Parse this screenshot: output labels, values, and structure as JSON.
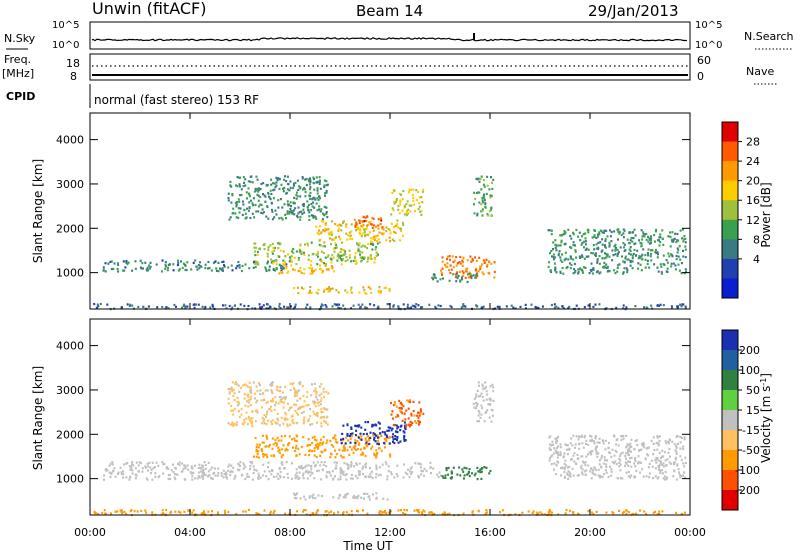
{
  "header": {
    "station": "Unwin (fitACF)",
    "beam": "Beam 14",
    "date": "29/Jan/2013"
  },
  "top_panels": {
    "nsky_label": "N.Sky",
    "nsky_ticks": [
      "10^5",
      "10^0"
    ],
    "nsearch_label": "N.Search",
    "freq_label": "Freq.",
    "freq_unit": "[MHz]",
    "freq_ticks": [
      "18",
      "8"
    ],
    "nave_label": "Nave",
    "nave_ticks": [
      "60",
      "0"
    ],
    "cpid_label": "CPID",
    "cpid_text": "normal (fast stereo) 153 RF"
  },
  "power_scale": {
    "title": "Power [dB]",
    "ticks": [
      "28",
      "24",
      "20",
      "16",
      "12",
      "8",
      "4"
    ],
    "colors": [
      "#e00000",
      "#ff5a00",
      "#ff9a00",
      "#ffcc00",
      "#9ec03a",
      "#3aa050",
      "#3a7a82",
      "#2040b0",
      "#0a1ed0"
    ]
  },
  "velocity_scale": {
    "title": "Velocity [m s",
    "title_sup": "-1",
    "title_end": "]",
    "ticks": [
      "200",
      "100",
      "50",
      "15",
      "-15",
      "-50",
      "-100",
      "-200"
    ],
    "colors": [
      "#1a30b0",
      "#2060a0",
      "#308040",
      "#60d040",
      "#c0c0c0",
      "#ffc060",
      "#ff9a00",
      "#ff5000",
      "#e00000"
    ]
  },
  "chart_data": {
    "type": "heatmap",
    "xlabel": "Time UT",
    "ylabel_top": "Slant Range [km]",
    "ylabel_bottom": "Slant Range [km]",
    "x_ticks": [
      "00:00",
      "04:00",
      "08:00",
      "12:00",
      "16:00",
      "20:00",
      "00:00"
    ],
    "x_range_hours": [
      0,
      24
    ],
    "y_ticks": [
      "1000",
      "2000",
      "3000",
      "4000"
    ],
    "y_range_km": [
      180,
      4600
    ],
    "power_blobs": [
      {
        "t0": 0.5,
        "t1": 8.0,
        "r0": 1050,
        "r1": 1300,
        "value": 9
      },
      {
        "t0": 6.5,
        "t1": 11.5,
        "r0": 1200,
        "r1": 1700,
        "value": 16
      },
      {
        "t0": 7.5,
        "t1": 10.0,
        "r0": 1000,
        "r1": 1200,
        "value": 22
      },
      {
        "t0": 5.5,
        "t1": 9.5,
        "r0": 2200,
        "r1": 3200,
        "value": 10
      },
      {
        "t0": 9.0,
        "t1": 12.5,
        "r0": 1700,
        "r1": 2200,
        "value": 20
      },
      {
        "t0": 10.5,
        "t1": 11.8,
        "r0": 2000,
        "r1": 2300,
        "value": 27
      },
      {
        "t0": 12.0,
        "t1": 13.3,
        "r0": 2300,
        "r1": 2900,
        "value": 18
      },
      {
        "t0": 14.0,
        "t1": 16.2,
        "r0": 900,
        "r1": 1400,
        "value": 26
      },
      {
        "t0": 13.6,
        "t1": 15.5,
        "r0": 800,
        "r1": 1000,
        "value": 10
      },
      {
        "t0": 8.0,
        "t1": 12.0,
        "r0": 550,
        "r1": 700,
        "value": 20
      },
      {
        "t0": 15.3,
        "t1": 16.1,
        "r0": 2300,
        "r1": 3200,
        "value": 12
      },
      {
        "t0": 18.3,
        "t1": 23.8,
        "r0": 1000,
        "r1": 2000,
        "value": 10
      },
      {
        "t0": 0.1,
        "t1": 23.9,
        "r0": 200,
        "r1": 320,
        "value": 6
      }
    ],
    "velocity_blobs": [
      {
        "t0": 0.5,
        "t1": 14.0,
        "r0": 1000,
        "r1": 1400,
        "value": 0
      },
      {
        "t0": 6.5,
        "t1": 12.0,
        "r0": 1500,
        "r1": 2000,
        "value": -40
      },
      {
        "t0": 10.0,
        "t1": 12.6,
        "r0": 1800,
        "r1": 2300,
        "value": 180
      },
      {
        "t0": 12.0,
        "t1": 13.3,
        "r0": 2200,
        "r1": 2800,
        "value": -80
      },
      {
        "t0": 14.0,
        "t1": 16.0,
        "r0": 1000,
        "r1": 1300,
        "value": 60
      },
      {
        "t0": 8.0,
        "t1": 12.0,
        "r0": 550,
        "r1": 700,
        "value": 0
      },
      {
        "t0": 5.5,
        "t1": 9.5,
        "r0": 2200,
        "r1": 3200,
        "value": -20
      },
      {
        "t0": 15.3,
        "t1": 16.1,
        "r0": 2300,
        "r1": 3200,
        "value": 0
      },
      {
        "t0": 18.3,
        "t1": 23.8,
        "r0": 1000,
        "r1": 2000,
        "value": 0
      },
      {
        "t0": 0.1,
        "t1": 23.9,
        "r0": 200,
        "r1": 320,
        "value": -40
      }
    ]
  }
}
